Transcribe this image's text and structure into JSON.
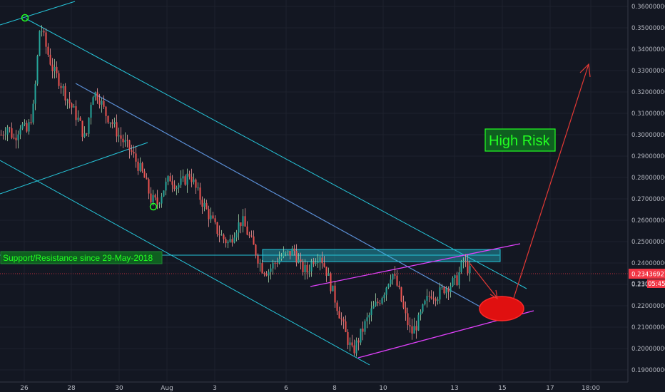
{
  "chart_data": {
    "type": "candlestick",
    "symbol_price_now": "0.23436927",
    "time_to_close": "05:45",
    "partial_price_label": "0.230",
    "y_ticks": [
      "0.36000000",
      "0.35000000",
      "0.34000000",
      "0.33000000",
      "0.32000000",
      "0.31000000",
      "0.30000000",
      "0.29000000",
      "0.28000000",
      "0.27000000",
      "0.26000000",
      "0.25000000",
      "0.24000000",
      "0.23000000",
      "0.22000000",
      "0.21000000",
      "0.20000000",
      "0.19000000"
    ],
    "x_ticks": [
      "26",
      "28",
      "30",
      "Aug",
      "3",
      "6",
      "8",
      "10",
      "13",
      "15",
      "17",
      "18:00"
    ],
    "ylim": [
      0.186,
      0.361
    ],
    "price_path": [
      [
        0,
        0.3
      ],
      [
        1,
        0.304
      ],
      [
        2,
        0.298
      ],
      [
        3,
        0.305
      ],
      [
        4,
        0.301
      ],
      [
        5,
        0.313
      ],
      [
        6,
        0.352
      ],
      [
        7,
        0.34
      ],
      [
        8,
        0.33
      ],
      [
        9,
        0.325
      ],
      [
        10,
        0.318
      ],
      [
        11,
        0.312
      ],
      [
        12,
        0.306
      ],
      [
        13,
        0.297
      ],
      [
        14,
        0.32
      ],
      [
        15,
        0.318
      ],
      [
        16,
        0.31
      ],
      [
        17,
        0.306
      ],
      [
        18,
        0.3
      ],
      [
        19,
        0.296
      ],
      [
        20,
        0.292
      ],
      [
        21,
        0.286
      ],
      [
        22,
        0.28
      ],
      [
        23,
        0.27
      ],
      [
        24,
        0.268
      ],
      [
        25,
        0.275
      ],
      [
        26,
        0.28
      ],
      [
        27,
        0.276
      ],
      [
        28,
        0.278
      ],
      [
        29,
        0.282
      ],
      [
        30,
        0.274
      ],
      [
        31,
        0.268
      ],
      [
        32,
        0.262
      ],
      [
        33,
        0.256
      ],
      [
        34,
        0.252
      ],
      [
        35,
        0.249
      ],
      [
        36,
        0.256
      ],
      [
        37,
        0.26
      ],
      [
        38,
        0.253
      ],
      [
        39,
        0.246
      ],
      [
        40,
        0.238
      ],
      [
        41,
        0.236
      ],
      [
        42,
        0.24
      ],
      [
        43,
        0.243
      ],
      [
        44,
        0.244
      ],
      [
        45,
        0.246
      ],
      [
        46,
        0.238
      ],
      [
        47,
        0.236
      ],
      [
        48,
        0.242
      ],
      [
        49,
        0.244
      ],
      [
        50,
        0.236
      ],
      [
        51,
        0.226
      ],
      [
        52,
        0.216
      ],
      [
        53,
        0.206
      ],
      [
        54,
        0.198
      ],
      [
        55,
        0.205
      ],
      [
        56,
        0.212
      ],
      [
        57,
        0.218
      ],
      [
        58,
        0.222
      ],
      [
        59,
        0.228
      ],
      [
        60,
        0.236
      ],
      [
        61,
        0.228
      ],
      [
        62,
        0.216
      ],
      [
        63,
        0.207
      ],
      [
        64,
        0.212
      ],
      [
        65,
        0.22
      ],
      [
        66,
        0.226
      ],
      [
        67,
        0.225
      ],
      [
        68,
        0.228
      ],
      [
        69,
        0.23
      ],
      [
        70,
        0.232
      ],
      [
        71,
        0.241
      ],
      [
        72,
        0.236
      ]
    ],
    "annotations": {
      "support_resistance": "Support/Resistance since 29-May-2018",
      "risk": "High Risk"
    }
  }
}
